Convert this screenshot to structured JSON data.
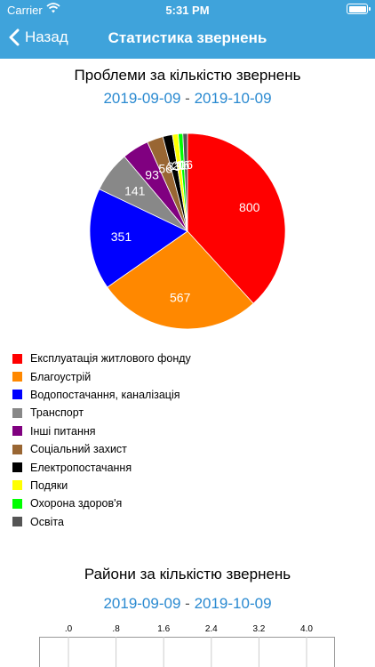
{
  "status": {
    "carrier": "Carrier",
    "time": "5:31 PM"
  },
  "nav": {
    "back_label": "Назад",
    "title": "Статистика звернень"
  },
  "section1": {
    "title": "Проблеми за кількістю звернень",
    "date_from": "2019-09-09",
    "date_sep": "-",
    "date_to": "2019-10-09"
  },
  "section2": {
    "title": "Райони за кількістю звернень",
    "date_from": "2019-09-09",
    "date_sep": "-",
    "date_to": "2019-10-09"
  },
  "chart_data": [
    {
      "type": "pie",
      "title": "Проблеми за кількістю звернень",
      "categories": [
        "Експлуатація житлового фонду",
        "Благоустрій",
        "Водопостачання, каналізація",
        "Транспорт",
        "Інші питання",
        "Соціальний захист",
        "Електропостачання",
        "Подяки",
        "Охорона здоров'я",
        "Освіта"
      ],
      "values": [
        800,
        567,
        351,
        141,
        93,
        56,
        33,
        20,
        16,
        16
      ],
      "value_labels": [
        "800",
        "567",
        "351",
        "141",
        "93",
        "56",
        "33",
        "20",
        "16",
        "16"
      ],
      "colors": [
        "#ff0000",
        "#ff8800",
        "#0000ff",
        "#888888",
        "#800080",
        "#996633",
        "#000000",
        "#ffff00",
        "#00ff00",
        "#555555"
      ],
      "legend_position": "bottom"
    },
    {
      "type": "bar",
      "title": "Райони за кількістю звернень",
      "tick_labels": [
        ".0",
        ".8",
        "1.6",
        "2.4",
        "3.2",
        "4.0"
      ],
      "xlim": [
        0,
        4
      ]
    }
  ]
}
